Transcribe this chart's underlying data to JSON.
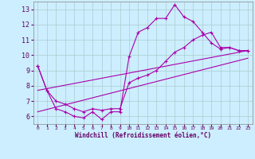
{
  "background_color": "#cceeff",
  "grid_color": "#aacccc",
  "line_color": "#aa00aa",
  "xlabel": "Windchill (Refroidissement éolien,°C)",
  "xlim": [
    -0.5,
    23.5
  ],
  "ylim": [
    5.5,
    13.5
  ],
  "xticks": [
    0,
    1,
    2,
    3,
    4,
    5,
    6,
    7,
    8,
    9,
    10,
    11,
    12,
    13,
    14,
    15,
    16,
    17,
    18,
    19,
    20,
    21,
    22,
    23
  ],
  "yticks": [
    6,
    7,
    8,
    9,
    10,
    11,
    12,
    13
  ],
  "series": [
    {
      "x": [
        0,
        1,
        2,
        3,
        4,
        5,
        6,
        7,
        8,
        9,
        10,
        11,
        12,
        13,
        14,
        15,
        16,
        17,
        18,
        19,
        20,
        21,
        22,
        23
      ],
      "y": [
        9.3,
        7.7,
        6.5,
        6.3,
        6.0,
        5.9,
        6.3,
        5.8,
        6.3,
        6.3,
        9.9,
        11.5,
        11.8,
        12.4,
        12.4,
        13.3,
        12.5,
        12.2,
        11.5,
        10.8,
        10.4,
        10.5,
        10.3,
        10.3
      ],
      "has_markers": true
    },
    {
      "x": [
        0,
        1,
        2,
        3,
        4,
        5,
        6,
        7,
        8,
        9,
        10,
        11,
        12,
        13,
        14,
        15,
        16,
        17,
        18,
        19,
        20,
        21,
        22,
        23
      ],
      "y": [
        9.3,
        7.7,
        7.0,
        6.8,
        6.5,
        6.3,
        6.5,
        6.4,
        6.5,
        6.5,
        8.2,
        8.5,
        8.7,
        9.0,
        9.6,
        10.2,
        10.5,
        11.0,
        11.3,
        11.5,
        10.5,
        10.5,
        10.3,
        10.3
      ],
      "has_markers": true
    },
    {
      "x": [
        0,
        23
      ],
      "y": [
        7.7,
        10.3
      ],
      "has_markers": false
    },
    {
      "x": [
        0,
        23
      ],
      "y": [
        6.3,
        9.8
      ],
      "has_markers": false
    }
  ]
}
